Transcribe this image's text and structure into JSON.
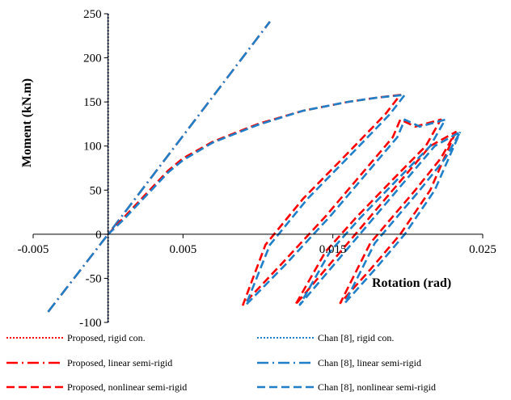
{
  "chart_data": {
    "type": "line",
    "xlabel": "Rotation (rad)",
    "ylabel": "Moment (kN.m)",
    "xlim": [
      -0.005,
      0.025
    ],
    "ylim": [
      -100,
      250
    ],
    "xticks": [
      "-0.005",
      "0.005",
      "0.015",
      "0.025"
    ],
    "xtick_values": [
      -0.005,
      0.005,
      0.015,
      0.025
    ],
    "yticks": [
      "-100",
      "-50",
      "0",
      "50",
      "100",
      "150",
      "200",
      "250"
    ],
    "ytick_values": [
      -100,
      -50,
      0,
      50,
      100,
      150,
      200,
      250
    ],
    "grid": false,
    "legend_position": "bottom",
    "series": [
      {
        "name": "Proposed, rigid con.",
        "color": "#ff0000",
        "dash": "dotted",
        "x": [
          0,
          0,
          0
        ],
        "y": [
          -100,
          0,
          250
        ]
      },
      {
        "name": "Chan [8], rigid con.",
        "color": "#1f7fc8",
        "dash": "dotted",
        "x": [
          0,
          0,
          0
        ],
        "y": [
          -100,
          0,
          250
        ]
      },
      {
        "name": "Proposed, linear semi-rigid",
        "color": "#ff0000",
        "dash": "dashdot",
        "x": [
          -0.004,
          0,
          0.0108
        ],
        "y": [
          -88,
          0,
          241
        ]
      },
      {
        "name": "Chan [8], linear semi-rigid",
        "color": "#1f7fc8",
        "dash": "dashdot",
        "x": [
          -0.004,
          0,
          0.0108
        ],
        "y": [
          -88,
          0,
          241
        ]
      },
      {
        "name": "Proposed, nonlinear semi-rigid",
        "color": "#ff0000",
        "dash": "dashed",
        "x": [
          0,
          0.001,
          0.002,
          0.003,
          0.004,
          0.005,
          0.007,
          0.01,
          0.013,
          0.016,
          0.018,
          0.0195,
          0.0185,
          0.016,
          0.013,
          0.0105,
          0.009,
          0.0115,
          0.0145,
          0.017,
          0.019,
          0.0195,
          0.0205,
          0.0222,
          0.0212,
          0.019,
          0.0165,
          0.0145,
          0.0125,
          0.0145,
          0.0165,
          0.0185,
          0.0205,
          0.0215,
          0.0232,
          0.0222,
          0.0205,
          0.019,
          0.0175,
          0.0155,
          0.0175,
          0.0195,
          0.0215,
          0.0232
        ],
        "y": [
          0,
          18,
          36,
          54,
          72,
          86,
          105,
          125,
          140,
          150,
          155,
          158,
          136,
          92,
          40,
          -12,
          -80,
          -35,
          20,
          70,
          110,
          130,
          122,
          130,
          100,
          62,
          18,
          -20,
          -80,
          -40,
          0,
          40,
          80,
          100,
          116,
          86,
          50,
          20,
          -10,
          -78,
          -40,
          0,
          50,
          116
        ]
      },
      {
        "name": "Chan [8], nonlinear semi-rigid",
        "color": "#1f7fc8",
        "dash": "dashed",
        "x": [
          0,
          0.001,
          0.002,
          0.003,
          0.004,
          0.005,
          0.007,
          0.01,
          0.013,
          0.016,
          0.018,
          0.0198,
          0.0188,
          0.0163,
          0.0133,
          0.0108,
          0.0092,
          0.0118,
          0.0148,
          0.0173,
          0.0193,
          0.0198,
          0.0208,
          0.0225,
          0.0215,
          0.0193,
          0.0168,
          0.0148,
          0.0128,
          0.0148,
          0.0168,
          0.0188,
          0.0208,
          0.0218,
          0.0235,
          0.0225,
          0.0208,
          0.0193,
          0.0178,
          0.0158,
          0.0178,
          0.0198,
          0.0218,
          0.0235
        ],
        "y": [
          0,
          16,
          34,
          52,
          70,
          84,
          104,
          124,
          140,
          150,
          155,
          158,
          136,
          92,
          40,
          -12,
          -80,
          -35,
          20,
          70,
          110,
          130,
          122,
          130,
          100,
          62,
          18,
          -20,
          -80,
          -40,
          0,
          40,
          80,
          100,
          116,
          86,
          50,
          20,
          -10,
          -78,
          -40,
          0,
          50,
          116
        ]
      }
    ]
  }
}
